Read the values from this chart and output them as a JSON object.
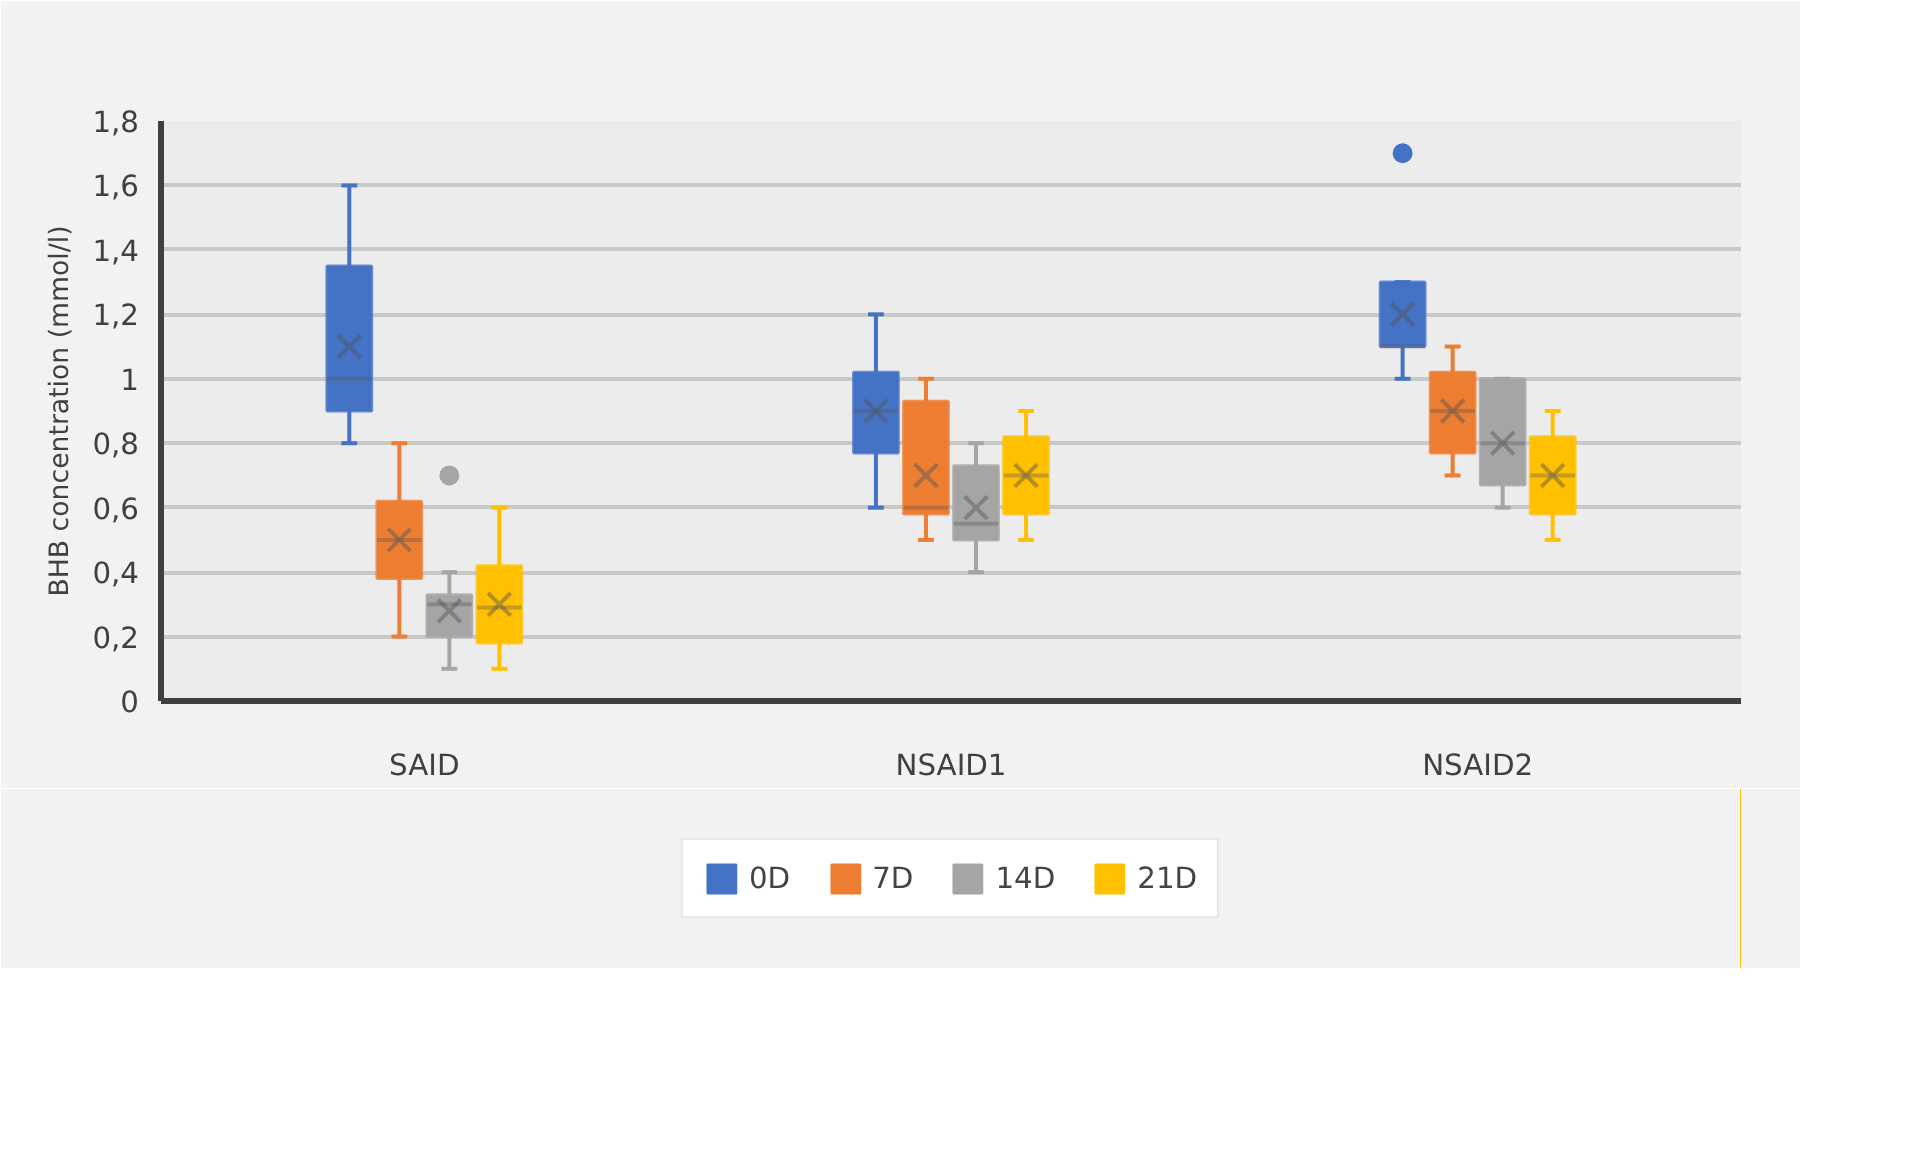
{
  "chart_data": {
    "type": "box",
    "ylabel": "BHB concentration (mmol/l)",
    "categories": [
      "SAID",
      "NSAID1",
      "NSAID2"
    ],
    "ylim": [
      0,
      1.8
    ],
    "yticks": [
      0,
      {
        "value": 0.2,
        "label": "0,2"
      },
      {
        "value": 0.4,
        "label": "0,4"
      },
      {
        "value": 0.6,
        "label": "0,6"
      },
      {
        "value": 0.8,
        "label": "0,8"
      },
      1,
      {
        "value": 1.2,
        "label": "1,2"
      },
      {
        "value": 1.4,
        "label": "1,4"
      },
      {
        "value": 1.6,
        "label": "1,6"
      },
      {
        "value": 1.8,
        "label": "1,8"
      }
    ],
    "grid": "y",
    "legend": "bottom",
    "series": [
      {
        "name": "0D",
        "color": "#4472c4",
        "boxes": [
          {
            "low": 0.8,
            "q1": 0.9,
            "median": 1.0,
            "q3": 1.35,
            "high": 1.6,
            "mean": 1.1
          },
          {
            "low": 0.6,
            "q1": 0.77,
            "median": 0.9,
            "q3": 1.02,
            "high": 1.2,
            "mean": 0.9
          },
          {
            "low": 1.0,
            "q1": 1.1,
            "median": 1.1,
            "q3": 1.3,
            "high": 1.3,
            "mean": 1.2,
            "outliers": [
              1.7
            ]
          }
        ]
      },
      {
        "name": "7D",
        "color": "#ed7d31",
        "boxes": [
          {
            "low": 0.2,
            "q1": 0.38,
            "median": 0.5,
            "q3": 0.62,
            "high": 0.8,
            "mean": 0.5
          },
          {
            "low": 0.5,
            "q1": 0.58,
            "median": 0.6,
            "q3": 0.93,
            "high": 1.0,
            "mean": 0.7
          },
          {
            "low": 0.7,
            "q1": 0.77,
            "median": 0.9,
            "q3": 1.02,
            "high": 1.1,
            "mean": 0.9
          }
        ]
      },
      {
        "name": "14D",
        "color": "#a5a5a5",
        "boxes": [
          {
            "low": 0.1,
            "q1": 0.2,
            "median": 0.3,
            "q3": 0.33,
            "high": 0.4,
            "mean": 0.28,
            "outliers": [
              0.7
            ]
          },
          {
            "low": 0.4,
            "q1": 0.5,
            "median": 0.55,
            "q3": 0.73,
            "high": 0.8,
            "mean": 0.6
          },
          {
            "low": 0.6,
            "q1": 0.67,
            "median": 0.8,
            "q3": 1.0,
            "high": 1.0,
            "mean": 0.8
          }
        ]
      },
      {
        "name": "21D",
        "color": "#ffc000",
        "boxes": [
          {
            "low": 0.1,
            "q1": 0.18,
            "median": 0.29,
            "q3": 0.42,
            "high": 0.6,
            "mean": 0.3
          },
          {
            "low": 0.5,
            "q1": 0.58,
            "median": 0.7,
            "q3": 0.82,
            "high": 0.9,
            "mean": 0.7
          },
          {
            "low": 0.5,
            "q1": 0.58,
            "median": 0.7,
            "q3": 0.82,
            "high": 0.9,
            "mean": 0.7
          }
        ]
      }
    ]
  }
}
